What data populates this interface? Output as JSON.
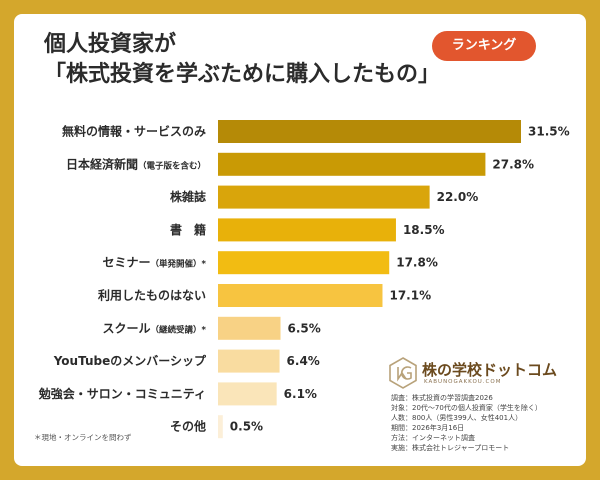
{
  "title_line1": "個人投資家が",
  "title_line2": "「株式投資を学ぶために購入したもの」",
  "badge": "ランキング",
  "chart_data": {
    "type": "bar",
    "orientation": "horizontal",
    "categories": [
      {
        "label": "無料の情報・サービスのみ",
        "note": ""
      },
      {
        "label": "日本経済新聞",
        "note": "（電子版を含む）"
      },
      {
        "label": "株雑誌",
        "note": ""
      },
      {
        "label": "書　籍",
        "note": ""
      },
      {
        "label": "セミナー",
        "note": "（単発開催）*"
      },
      {
        "label": "利用したものはない",
        "note": ""
      },
      {
        "label": "スクール",
        "note": "（継続受講）*"
      },
      {
        "label": "YouTubeのメンバーシップ",
        "note": ""
      },
      {
        "label": "勉強会・サロン・コミュニティ",
        "note": ""
      },
      {
        "label": "その他",
        "note": ""
      }
    ],
    "values": [
      31.5,
      27.8,
      22.0,
      18.5,
      17.8,
      17.1,
      6.5,
      6.4,
      6.1,
      0.5
    ],
    "value_labels": [
      "31.5%",
      "27.8%",
      "22.0%",
      "18.5%",
      "17.8%",
      "17.1%",
      "6.5%",
      "6.4%",
      "6.1%",
      "0.5%"
    ],
    "bar_colors": [
      "#b58a07",
      "#c99a05",
      "#d9a50b",
      "#e8b10a",
      "#f2bc12",
      "#f7c440",
      "#f8d285",
      "#f9dca0",
      "#fae5b9",
      "#fcefd8"
    ],
    "xlim": [
      0,
      31.5
    ],
    "grid": false,
    "legend": "none"
  },
  "footnote": "＊現地・オンラインを問わず",
  "logo": {
    "name": "株の学校ドットコム",
    "sub": "KABUNOGAKKOU.COM"
  },
  "survey": [
    "調査：株式投資の学習調査2026",
    "対象：20代〜70代の個人投資家（学生を除く）",
    "人数：800人（男性399人、女性401人）",
    "期間：2026年3月16日",
    "方法：インターネット調査",
    "実施：株式会社トレジャープロモート"
  ]
}
